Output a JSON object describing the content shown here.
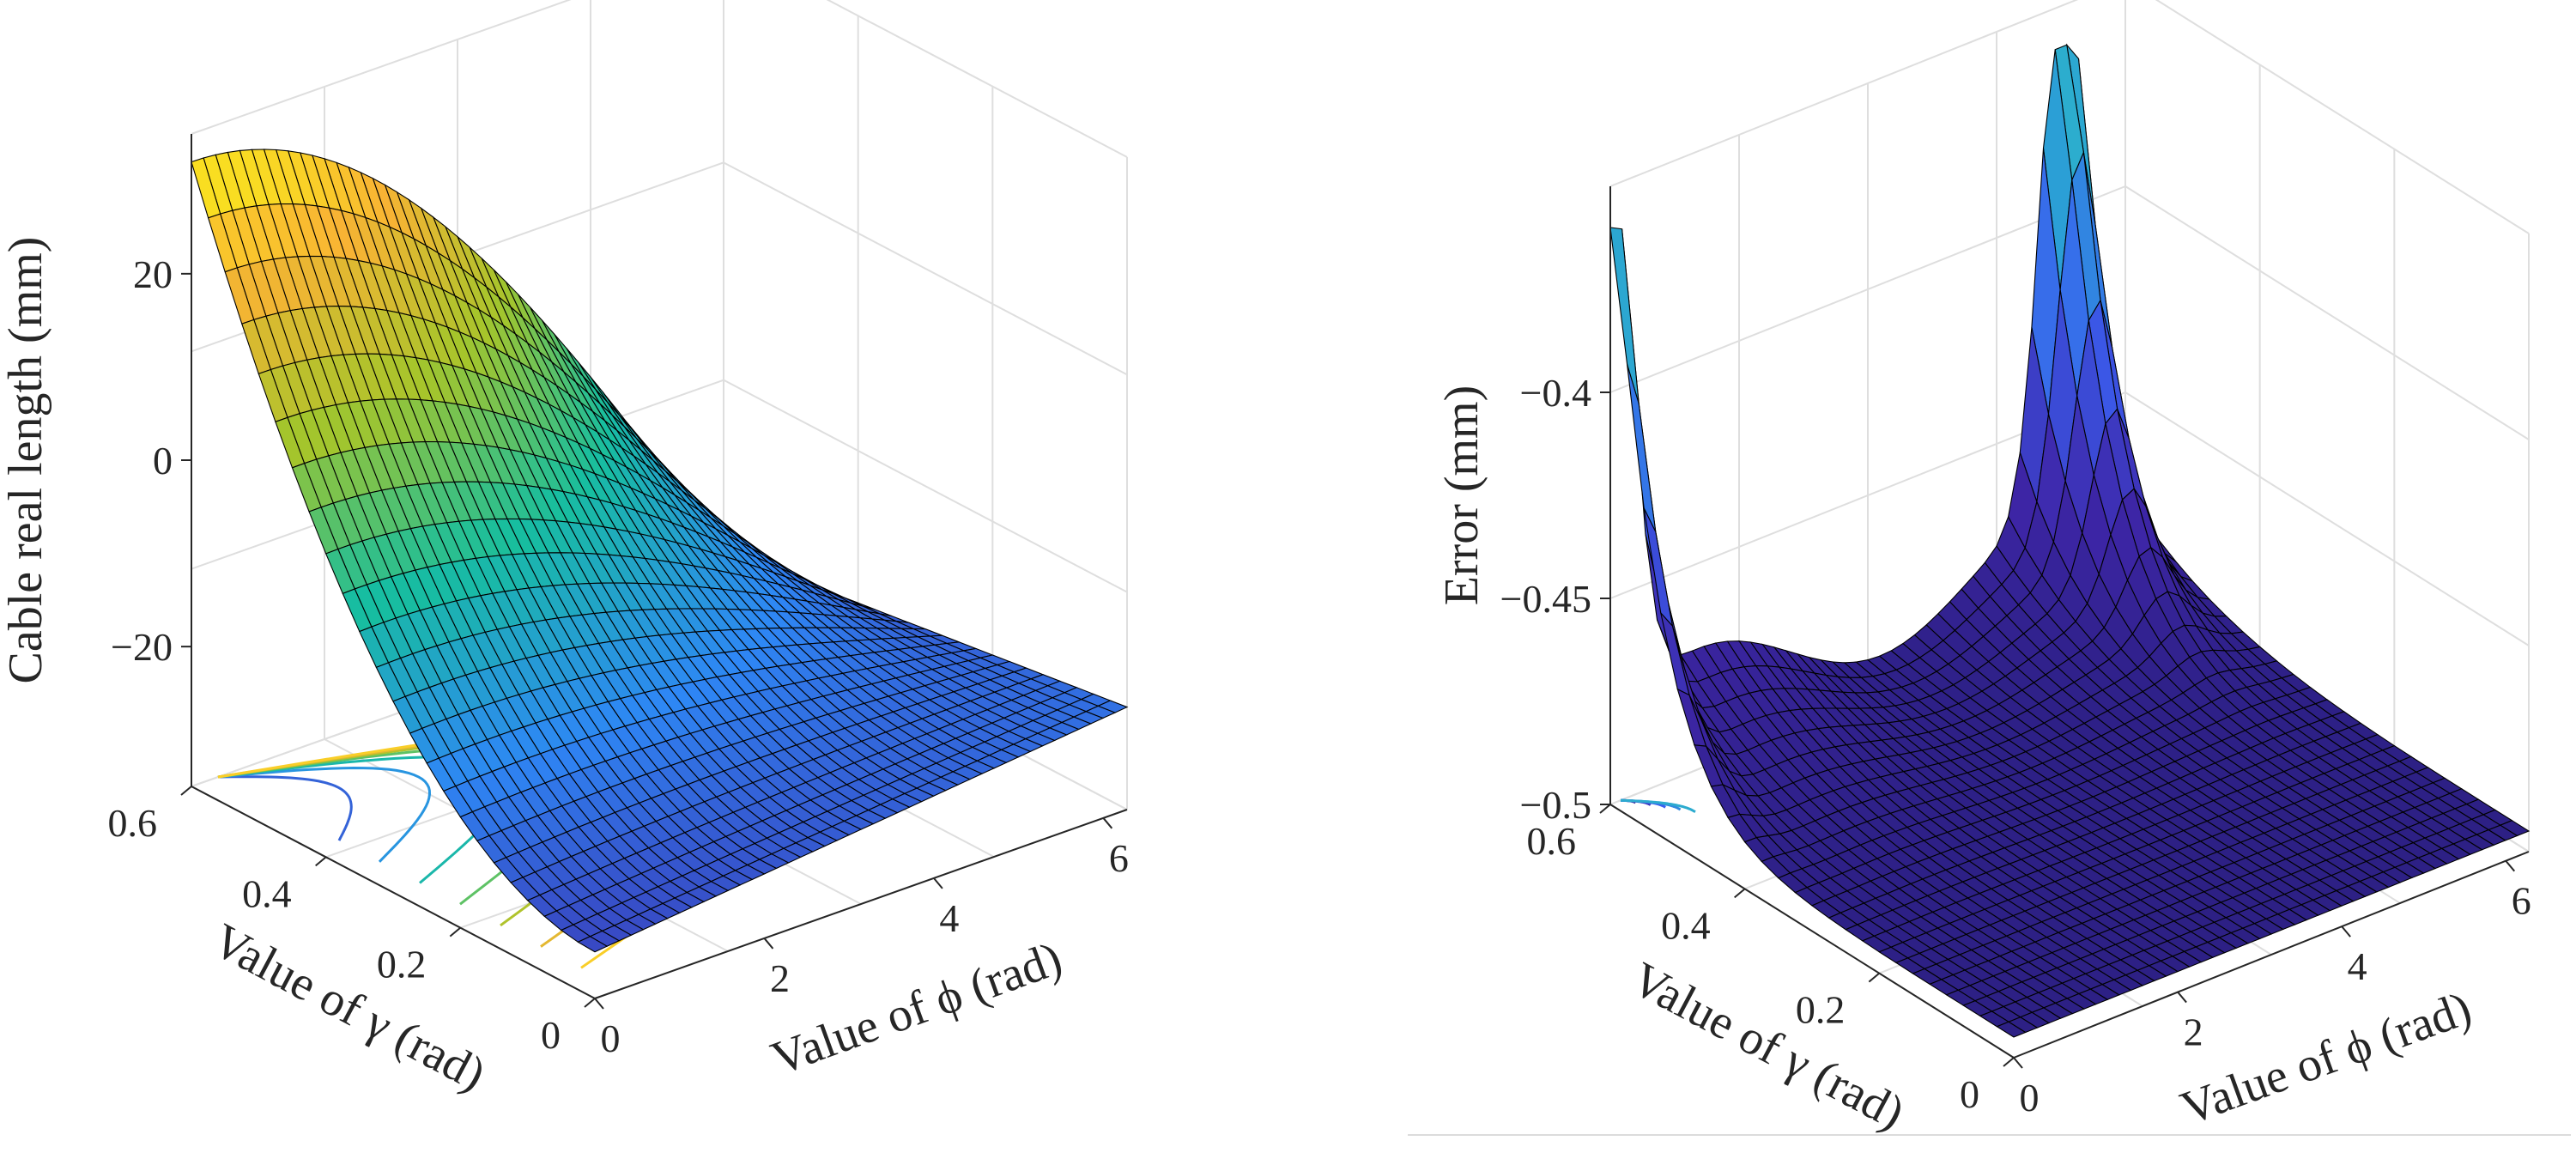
{
  "chart_data": [
    {
      "type": "surface",
      "title": "",
      "xlabel": "Value of ϕ (rad)",
      "ylabel": "Value of γ (rad)",
      "zlabel": "Cable real length (mm)",
      "x_ticks": [
        "0",
        "2",
        "4",
        "6"
      ],
      "y_ticks": [
        "0",
        "0.2",
        "0.4",
        "0.6"
      ],
      "z_ticks": [
        "−20",
        "0",
        "20"
      ],
      "xlim": [
        0,
        6.28
      ],
      "ylim": [
        0,
        0.6
      ],
      "zlim": [
        -35,
        35
      ],
      "surface": {
        "peak": {
          "x": 0,
          "y": 0.6,
          "z": 32
        },
        "min_value": -30,
        "colormap": [
          "#3e26a8",
          "#2e87f5",
          "#17be9f",
          "#a5c52b",
          "#f9b334",
          "#f9fb15"
        ]
      },
      "contours": {
        "levels": 7,
        "plane": "floor"
      }
    },
    {
      "type": "surface",
      "title": "",
      "xlabel": "Value of ϕ (rad)",
      "ylabel": "Value of γ (rad)",
      "zlabel": "Error (mm)",
      "x_ticks": [
        "0",
        "2",
        "4",
        "6"
      ],
      "y_ticks": [
        "0",
        "0.2",
        "0.4",
        "0.6"
      ],
      "z_ticks": [
        "−0.5",
        "−0.45",
        "−0.4"
      ],
      "xlim": [
        0,
        6.28
      ],
      "ylim": [
        0,
        0.6
      ],
      "zlim": [
        -0.5,
        -0.35
      ],
      "surface": {
        "peaks": [
          {
            "x": 0,
            "y": 0.6,
            "z": -0.36
          },
          {
            "x": 6.28,
            "y": 0.6,
            "z": -0.36
          }
        ],
        "base_value": -0.495,
        "colormap": [
          "#2a1f80",
          "#3e26a8",
          "#3a5ff0",
          "#2b9ed7",
          "#2ec4c0"
        ]
      },
      "contours": {
        "levels": 5,
        "plane": "floor"
      }
    }
  ]
}
